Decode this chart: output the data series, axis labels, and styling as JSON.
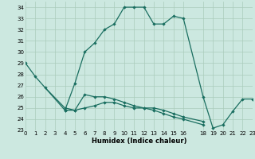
{
  "xlabel": "Humidex (Indice chaleur)",
  "background_color": "#cce8e0",
  "grid_color": "#aaccbb",
  "line_color": "#1a6e60",
  "series1_x": [
    0,
    1,
    4,
    5,
    6,
    7,
    8,
    9,
    10,
    11,
    12,
    13,
    14,
    15,
    16,
    18,
    19,
    20,
    21,
    22,
    23
  ],
  "series1_y": [
    29.0,
    27.8,
    24.8,
    27.2,
    30.0,
    30.8,
    32.0,
    32.5,
    34.0,
    34.0,
    34.0,
    32.5,
    32.5,
    33.2,
    33.0,
    26.0,
    23.2,
    23.5,
    24.7,
    25.8,
    25.8
  ],
  "series2_x": [
    2,
    4,
    5,
    6,
    7,
    8,
    9,
    10,
    11,
    12,
    13,
    14,
    15,
    16,
    18
  ],
  "series2_y": [
    26.8,
    25.0,
    24.8,
    25.0,
    25.2,
    25.5,
    25.5,
    25.2,
    25.0,
    25.0,
    25.0,
    24.8,
    24.5,
    24.2,
    23.8
  ],
  "series3_x": [
    4,
    5,
    6,
    7,
    8,
    9,
    10,
    11,
    12,
    13,
    14,
    15,
    16,
    18
  ],
  "series3_y": [
    24.8,
    24.8,
    26.2,
    26.0,
    26.0,
    25.8,
    25.5,
    25.2,
    25.0,
    24.8,
    24.5,
    24.2,
    24.0,
    23.5
  ],
  "xlim": [
    0,
    23
  ],
  "ylim": [
    23,
    34.5
  ],
  "yticks": [
    23,
    24,
    25,
    26,
    27,
    28,
    29,
    30,
    31,
    32,
    33,
    34
  ],
  "xticks": [
    0,
    1,
    2,
    3,
    4,
    5,
    6,
    7,
    8,
    9,
    10,
    11,
    12,
    13,
    14,
    15,
    16,
    18,
    19,
    20,
    21,
    22,
    23
  ],
  "tick_fontsize": 5.0,
  "xlabel_fontsize": 6.0
}
